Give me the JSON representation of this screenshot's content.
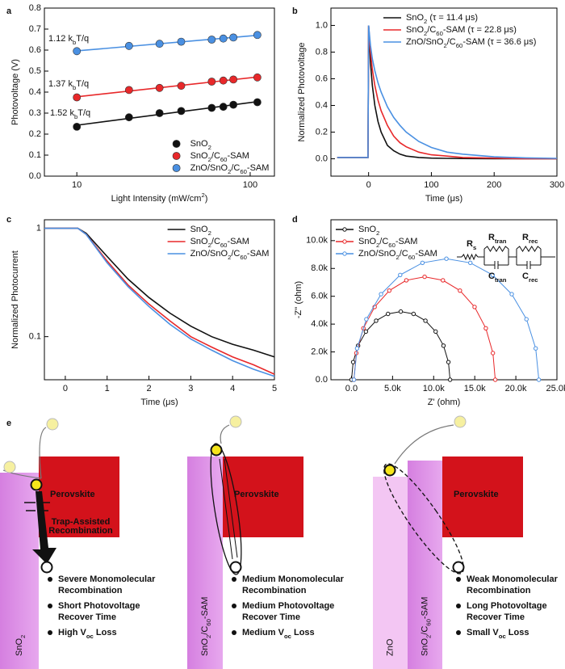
{
  "chart_data": [
    {
      "label": "a",
      "type": "scatter",
      "fit": true,
      "xlog": true,
      "xlabel": "Light Intensity (mW/cm2)",
      "ylabel": "Photovoltage (V)",
      "x": [
        10,
        20,
        30,
        40,
        60,
        70,
        80,
        110
      ],
      "series": [
        {
          "name": "SnO2",
          "color": "#111111",
          "values": [
            0.235,
            0.28,
            0.3,
            0.31,
            0.325,
            0.33,
            0.34,
            0.352
          ]
        },
        {
          "name": "SnO2/C60-SAM",
          "color": "#e8282a",
          "values": [
            0.375,
            0.41,
            0.42,
            0.43,
            0.45,
            0.455,
            0.46,
            0.47
          ]
        },
        {
          "name": "ZnO/SnO2/C60-SAM",
          "color": "#4a90e2",
          "values": [
            0.595,
            0.62,
            0.63,
            0.64,
            0.65,
            0.655,
            0.66,
            0.672
          ]
        }
      ],
      "annotations": [
        {
          "text": "1.12 kbT/q",
          "color": "#4a90e2"
        },
        {
          "text": "1.37 kbT/q",
          "color": "#e8282a"
        },
        {
          "text": "1.52 kbT/q",
          "color": "#111111"
        }
      ],
      "xlim": [
        6.5,
        138
      ],
      "xticks": [
        10,
        100
      ],
      "ylim": [
        0,
        0.8
      ],
      "yticks": [
        {
          "value": 0,
          "label": "0.0"
        },
        0.1,
        0.2,
        0.3,
        0.4,
        0.5,
        0.6,
        0.7,
        0.8
      ],
      "legend": "lower right"
    },
    {
      "label": "b",
      "type": "line",
      "xlabel": "Time (μs)",
      "ylabel": "Normalized Photovoltage",
      "x": [
        -50,
        -25,
        -1,
        0,
        3,
        6,
        10,
        15,
        20,
        30,
        40,
        50,
        60,
        80,
        100,
        125,
        150,
        200,
        250,
        300
      ],
      "series": [
        {
          "name": "SnO2 (τ = 11.4 μs)",
          "color": "#111111",
          "values": [
            0.01,
            0.01,
            0.01,
            1.0,
            0.72,
            0.55,
            0.4,
            0.28,
            0.2,
            0.1,
            0.06,
            0.035,
            0.02,
            0.01,
            0.005,
            0.003,
            0.002,
            0,
            0,
            0
          ]
        },
        {
          "name": "SnO2/C60-SAM (τ = 22.8 μs)",
          "color": "#e8282a",
          "values": [
            0.01,
            0.01,
            0.01,
            1.0,
            0.8,
            0.67,
            0.55,
            0.44,
            0.36,
            0.25,
            0.17,
            0.12,
            0.09,
            0.05,
            0.03,
            0.02,
            0.01,
            0.005,
            0,
            0
          ]
        },
        {
          "name": "ZnO/SnO2/C60-SAM (τ = 36.6 μs)",
          "color": "#4a90e2",
          "values": [
            0.01,
            0.01,
            0.01,
            1.0,
            0.85,
            0.75,
            0.66,
            0.57,
            0.5,
            0.39,
            0.31,
            0.25,
            0.2,
            0.13,
            0.085,
            0.05,
            0.035,
            0.015,
            0.007,
            0.003
          ]
        }
      ],
      "xlim": [
        -60,
        300
      ],
      "xticks": [
        0,
        100,
        200,
        300
      ],
      "ylim": [
        -0.13,
        1.13
      ],
      "yticks": [
        {
          "value": 0,
          "label": "0.0"
        },
        0.2,
        0.4,
        0.6,
        0.8,
        {
          "value": 1,
          "label": "1.0"
        }
      ],
      "legend": "upper right"
    },
    {
      "label": "c",
      "type": "line",
      "ylog": true,
      "xlabel": "Time (μs)",
      "ylabel": "Normalized Photocurrent",
      "x": [
        -0.5,
        0,
        0.3,
        0.5,
        1,
        1.5,
        2,
        2.5,
        3,
        3.5,
        4,
        4.5,
        5
      ],
      "series": [
        {
          "name": "SnO2",
          "color": "#111111",
          "values": [
            1,
            1,
            1,
            0.9,
            0.55,
            0.34,
            0.23,
            0.165,
            0.125,
            0.1,
            0.085,
            0.075,
            0.065
          ]
        },
        {
          "name": "SnO2/C60-SAM",
          "color": "#e8282a",
          "values": [
            1,
            1,
            1,
            0.88,
            0.5,
            0.3,
            0.2,
            0.14,
            0.1,
            0.08,
            0.065,
            0.055,
            0.045
          ]
        },
        {
          "name": "ZnO/SnO2/C60-SAM",
          "color": "#4a90e2",
          "values": [
            1,
            1,
            1,
            0.88,
            0.48,
            0.29,
            0.19,
            0.13,
            0.095,
            0.075,
            0.06,
            0.05,
            0.043
          ]
        }
      ],
      "xlim": [
        -0.5,
        5
      ],
      "xticks": [
        0,
        1,
        2,
        3,
        4,
        5
      ],
      "ylim": [
        0.04,
        1.2
      ],
      "yticks": [
        0.1,
        1
      ],
      "legend": "upper right"
    },
    {
      "label": "d",
      "type": "scatter",
      "connect": true,
      "xlabel": "Z' (ohm)",
      "ylabel": "-Z'' (ohm)",
      "series": [
        {
          "name": "SnO2",
          "color": "#111111",
          "x": [
            0,
            204,
            804,
            1758,
            3000,
            4446,
            6000,
            7554,
            9000,
            10242,
            11196,
            11796,
            12000
          ],
          "values": [
            0,
            1269,
            2450,
            3464,
            4243,
            4733,
            4900,
            4733,
            4243,
            3464,
            2450,
            1269,
            0
          ]
        },
        {
          "name": "SnO2/C60-SAM",
          "color": "#e8282a",
          "x": [
            300,
            593,
            1452,
            2820,
            4600,
            6673,
            8900,
            11127,
            13200,
            14980,
            16348,
            17207,
            17500
          ],
          "values": [
            0,
            1917,
            3700,
            5232,
            6408,
            7148,
            7400,
            7148,
            6408,
            5232,
            3700,
            1917,
            0
          ]
        },
        {
          "name": "ZnO/SnO2/C60-SAM",
          "color": "#4a90e2",
          "x": [
            300,
            683,
            1807,
            3596,
            5925,
            8636,
            11550,
            14464,
            17175,
            19504,
            21293,
            22417,
            22800
          ],
          "values": [
            0,
            2253,
            4350,
            6151,
            7534,
            8404,
            8700,
            8404,
            7534,
            6151,
            4350,
            2253,
            0
          ]
        }
      ],
      "xlim": [
        -2500,
        25000
      ],
      "xticks": [
        {
          "value": 0,
          "label": "0.0"
        },
        {
          "value": 5000,
          "label": "5.0k"
        },
        {
          "value": 10000,
          "label": "10.0k"
        },
        {
          "value": 15000,
          "label": "15.0k"
        },
        {
          "value": 20000,
          "label": "20.0k"
        },
        {
          "value": 25000,
          "label": "25.0k"
        }
      ],
      "ylim": [
        0,
        11500
      ],
      "yticks": [
        {
          "value": 0,
          "label": "0.0"
        },
        {
          "value": 2000,
          "label": "2.0k"
        },
        {
          "value": 4000,
          "label": "4.0k"
        },
        {
          "value": 6000,
          "label": "6.0k"
        },
        {
          "value": 8000,
          "label": "8.0k"
        },
        {
          "value": 10000,
          "label": "10.0k"
        }
      ],
      "legend": "upper left",
      "circuit": [
        "Rs",
        "Rtran",
        "Ctran",
        "Rrec",
        "Crec"
      ]
    }
  ],
  "diagram": {
    "label": "e",
    "panels": [
      {
        "layers": [
          "SnO2"
        ],
        "perovskite": "Perovskite",
        "note": [
          "Trap-Assisted",
          "Recombination"
        ],
        "bullets": [
          [
            "Severe Monomolecular",
            "Recombination"
          ],
          [
            "Short Photovoltage",
            "Recover Time"
          ],
          [
            "High Voc Loss"
          ]
        ]
      },
      {
        "layers": [
          "SnO2/C60-SAM"
        ],
        "perovskite": "Perovskite",
        "bullets": [
          [
            "Medium Monomolecular",
            "Recombination"
          ],
          [
            "Medium Photovoltage",
            "Recover Time"
          ],
          [
            "Medium Voc Loss"
          ]
        ]
      },
      {
        "layers": [
          "ZnO",
          "SnO2/C60-SAM"
        ],
        "perovskite": "Perovskite",
        "bullets": [
          [
            "Weak Monomolecular",
            "Recombination"
          ],
          [
            "Long Photovoltage",
            "Recover Time"
          ],
          [
            "Small Voc Loss"
          ]
        ]
      }
    ]
  }
}
